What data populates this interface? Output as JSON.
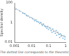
{
  "chart_data": {
    "type": "scatter",
    "y_label": "Spectral density",
    "caption": "The dotted line corresponds to the theoretical spectral density",
    "log": true,
    "grid": false,
    "xlim": [
      0.001,
      1
    ],
    "xticks": [
      0.001,
      0.01,
      0.1,
      1
    ],
    "ylim": [
      0.01,
      100
    ],
    "yticks": [
      0.01,
      1,
      100
    ],
    "series": [
      {
        "type": "scatter",
        "color": "#7ab8e0",
        "marker": "circle",
        "x": [
          0.0012,
          0.002,
          0.003,
          0.004,
          0.005,
          0.006,
          0.008,
          0.01,
          0.012,
          0.015,
          0.018,
          0.02,
          0.025,
          0.03,
          0.035,
          0.04,
          0.045,
          0.05,
          0.06,
          0.07,
          0.08,
          0.09,
          0.1,
          0.12,
          0.14,
          0.16,
          0.18,
          0.2,
          0.25,
          0.28,
          0.3,
          0.35,
          0.4,
          0.45,
          0.5,
          0.55,
          0.6,
          0.7,
          0.8,
          0.9,
          0.95
        ],
        "values": [
          22,
          15,
          9,
          8,
          5,
          4.5,
          3.2,
          3,
          2.2,
          1.5,
          1.9,
          1.2,
          1.1,
          0.8,
          1.0,
          0.6,
          0.5,
          0.7,
          0.4,
          0.35,
          0.25,
          0.4,
          0.2,
          0.3,
          0.15,
          0.1,
          0.22,
          0.12,
          0.08,
          0.15,
          0.05,
          0.1,
          0.06,
          0.03,
          0.07,
          0.04,
          0.05,
          0.025,
          0.045,
          0.02,
          0.035
        ]
      },
      {
        "type": "line",
        "color": "#333333",
        "line_style": "dotted",
        "x": [
          0.001,
          1
        ],
        "values": [
          30,
          0.03
        ]
      }
    ]
  }
}
